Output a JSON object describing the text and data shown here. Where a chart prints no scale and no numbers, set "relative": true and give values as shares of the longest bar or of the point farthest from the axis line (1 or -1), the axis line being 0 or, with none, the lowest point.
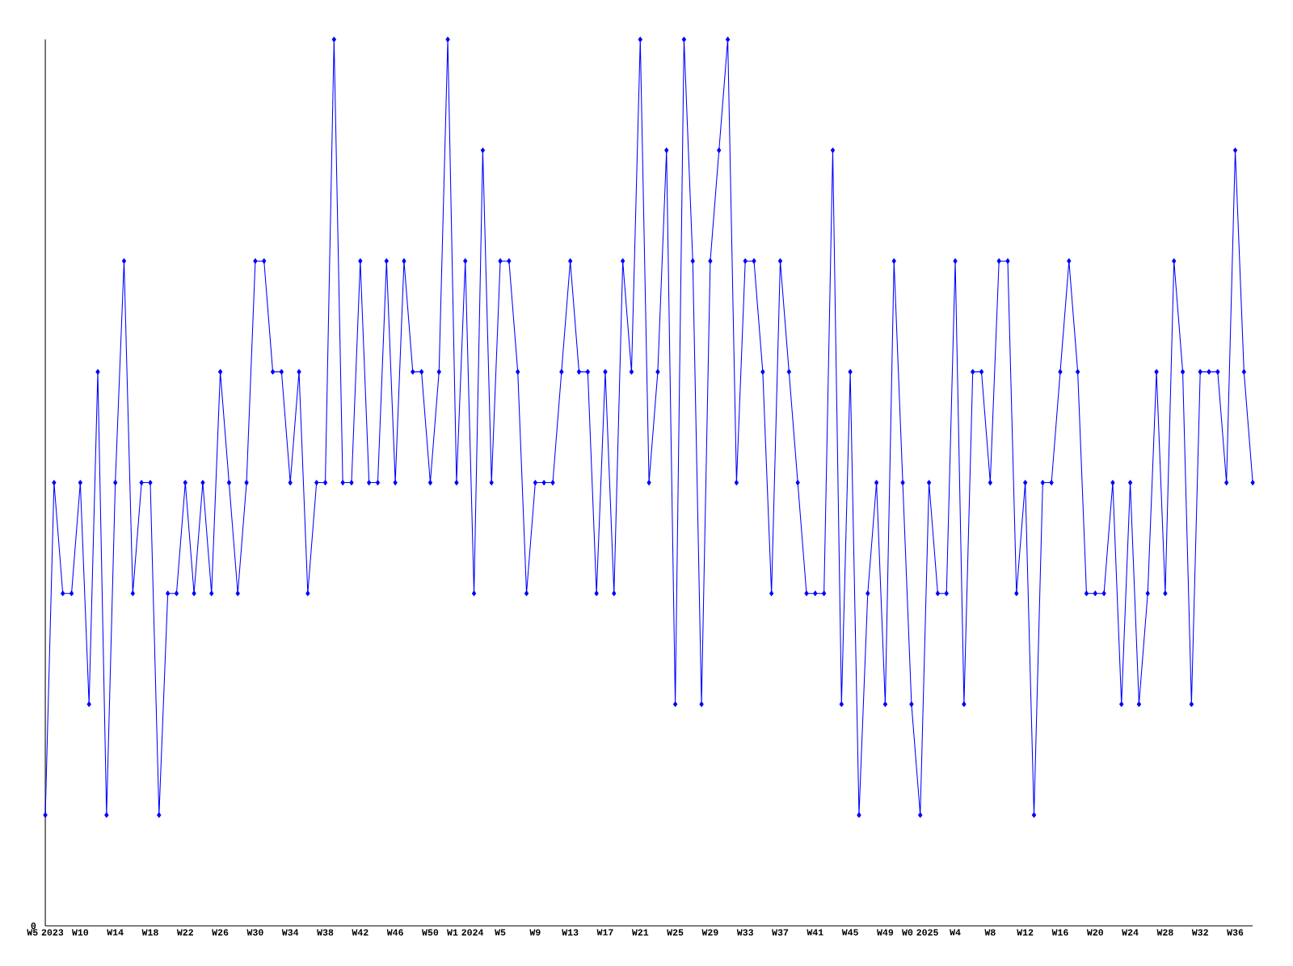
{
  "chart_data": {
    "type": "line",
    "relative": true,
    "color": "#0000ff",
    "marker": "diamond",
    "line_style": "solid",
    "annotations": [
      "0"
    ],
    "categories": [
      "W5 2023",
      null,
      null,
      null,
      "W10",
      null,
      null,
      null,
      "W14",
      null,
      null,
      null,
      "W18",
      null,
      null,
      null,
      "W22",
      null,
      null,
      null,
      "W26",
      null,
      null,
      null,
      "W30",
      null,
      null,
      null,
      "W34",
      null,
      null,
      null,
      "W38",
      null,
      null,
      null,
      "W42",
      null,
      null,
      null,
      "W46",
      null,
      null,
      null,
      "W50",
      null,
      null,
      null,
      "W1 2024",
      null,
      null,
      null,
      "W5",
      null,
      null,
      null,
      "W9",
      null,
      null,
      null,
      "W13",
      null,
      null,
      null,
      "W17",
      null,
      null,
      null,
      "W21",
      null,
      null,
      null,
      "W25",
      null,
      null,
      null,
      "W29",
      null,
      null,
      null,
      "W33",
      null,
      null,
      null,
      "W37",
      null,
      null,
      null,
      "W41",
      null,
      null,
      null,
      "W45",
      null,
      null,
      null,
      "W49",
      null,
      null,
      null,
      "W0 2025",
      null,
      null,
      null,
      "W4",
      null,
      null,
      null,
      "W8",
      null,
      null,
      null,
      "W12",
      null,
      null,
      null,
      "W16",
      null,
      null,
      null,
      "W20",
      null,
      null,
      null,
      "W24",
      null,
      null,
      null,
      "W28",
      null,
      null,
      null,
      "W32",
      null,
      null,
      null,
      "W36",
      null,
      null
    ],
    "values": [
      0.125,
      0.5,
      0.375,
      0.375,
      0.5,
      0.25,
      0.625,
      0.125,
      0.5,
      0.75,
      0.375,
      0.5,
      0.5,
      0.125,
      0.375,
      0.375,
      0.5,
      0.375,
      0.5,
      0.375,
      0.625,
      0.5,
      0.375,
      0.5,
      0.75,
      0.75,
      0.625,
      0.625,
      0.5,
      0.625,
      0.375,
      0.5,
      0.5,
      1,
      0.5,
      0.5,
      0.75,
      0.5,
      0.5,
      0.75,
      0.5,
      0.75,
      0.625,
      0.625,
      0.5,
      0.625,
      1,
      0.5,
      0.75,
      0.375,
      0.875,
      0.5,
      0.75,
      0.75,
      0.625,
      0.375,
      0.5,
      0.5,
      0.5,
      0.625,
      0.75,
      0.625,
      0.625,
      0.375,
      0.625,
      0.375,
      0.75,
      0.625,
      1,
      0.5,
      0.625,
      0.875,
      0.25,
      1,
      0.75,
      0.25,
      0.75,
      0.875,
      1,
      0.5,
      0.75,
      0.75,
      0.625,
      0.375,
      0.75,
      0.625,
      0.5,
      0.375,
      0.375,
      0.375,
      0.875,
      0.25,
      0.625,
      0.125,
      0.375,
      0.5,
      0.25,
      0.75,
      0.5,
      0.25,
      0.125,
      0.5,
      0.375,
      0.375,
      0.75,
      0.25,
      0.625,
      0.625,
      0.5,
      0.75,
      0.75,
      0.375,
      0.5,
      0.125,
      0.5,
      0.5,
      0.625,
      0.75,
      0.625,
      0.375,
      0.375,
      0.375,
      0.5,
      0.25,
      0.5,
      0.25,
      0.375,
      0.625,
      0.375,
      0.75,
      0.625,
      0.25,
      0.625,
      0.625,
      0.625,
      0.5,
      0.875,
      0.625,
      0.5
    ]
  }
}
